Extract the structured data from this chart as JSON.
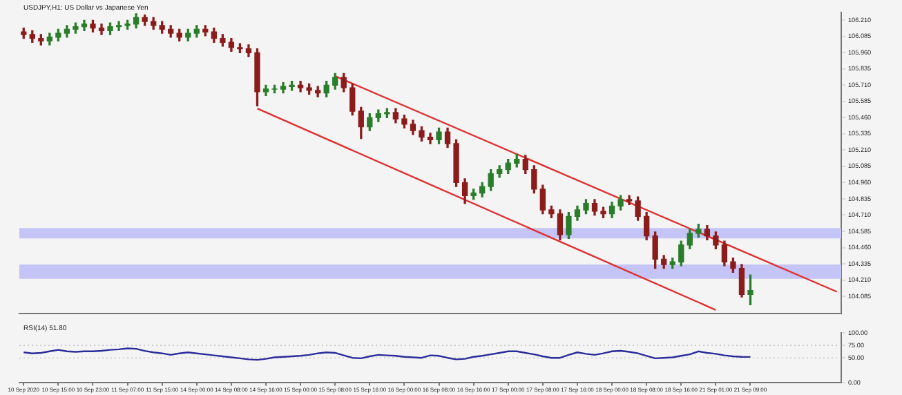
{
  "chart_data": [
    {
      "type": "candlestick",
      "title": "USDJPY,H1: US Dollar vs Japanese Yen",
      "tick_labels": "y",
      "categories": [
        null,
        null,
        null,
        null,
        null,
        null,
        null,
        null,
        null,
        null,
        null,
        null,
        null,
        null,
        null,
        null,
        null,
        null,
        null,
        null,
        null,
        null,
        null,
        null,
        null,
        null,
        null,
        null,
        null,
        null,
        null,
        null,
        null,
        null,
        null,
        null,
        null,
        null,
        null,
        null,
        null,
        null,
        null,
        null,
        null,
        null,
        null,
        null,
        null,
        null,
        null,
        null,
        null,
        null,
        null,
        null,
        null,
        null,
        null,
        null,
        null,
        null,
        null,
        null,
        null,
        null,
        null,
        null,
        null,
        null,
        null,
        null,
        null,
        null,
        null,
        null,
        null,
        null,
        null,
        null,
        null,
        null,
        null,
        null,
        null,
        null,
        null,
        null,
        null,
        null,
        null,
        null,
        null,
        null,
        null
      ],
      "ohlc": [
        [
          106.12,
          106.15,
          106.07,
          106.1
        ],
        [
          106.1,
          106.13,
          106.04,
          106.07
        ],
        [
          106.07,
          106.1,
          106.02,
          106.05
        ],
        [
          106.05,
          106.11,
          106.02,
          106.08
        ],
        [
          106.08,
          106.14,
          106.05,
          106.11
        ],
        [
          106.11,
          106.17,
          106.08,
          106.14
        ],
        [
          106.14,
          106.19,
          106.11,
          106.16
        ],
        [
          106.16,
          106.21,
          106.13,
          106.18
        ],
        [
          106.18,
          106.21,
          106.12,
          106.15
        ],
        [
          106.15,
          106.18,
          106.1,
          106.13
        ],
        [
          106.13,
          106.19,
          106.1,
          106.16
        ],
        [
          106.16,
          106.2,
          106.13,
          106.17
        ],
        [
          106.17,
          106.21,
          106.14,
          106.18
        ],
        [
          106.18,
          106.26,
          106.15,
          106.23
        ],
        [
          106.23,
          106.25,
          106.17,
          106.2
        ],
        [
          106.2,
          106.23,
          106.14,
          106.17
        ],
        [
          106.17,
          106.2,
          106.11,
          106.14
        ],
        [
          106.14,
          106.17,
          106.08,
          106.11
        ],
        [
          106.11,
          106.14,
          106.05,
          106.08
        ],
        [
          106.08,
          106.14,
          106.05,
          106.11
        ],
        [
          106.11,
          106.17,
          106.08,
          106.14
        ],
        [
          106.14,
          106.17,
          106.09,
          106.12
        ],
        [
          106.12,
          106.15,
          106.04,
          106.07
        ],
        [
          106.07,
          106.1,
          106.01,
          106.04
        ],
        [
          106.04,
          106.07,
          105.97,
          106.0
        ],
        [
          106.0,
          106.03,
          105.96,
          105.99
        ],
        [
          105.99,
          106.02,
          105.93,
          105.96
        ],
        [
          105.96,
          105.99,
          105.55,
          105.66
        ],
        [
          105.66,
          105.71,
          105.63,
          105.68
        ],
        [
          105.68,
          105.71,
          105.65,
          105.68
        ],
        [
          105.68,
          105.73,
          105.65,
          105.7
        ],
        [
          105.7,
          105.74,
          105.67,
          105.71
        ],
        [
          105.71,
          105.74,
          105.66,
          105.69
        ],
        [
          105.69,
          105.72,
          105.64,
          105.67
        ],
        [
          105.67,
          105.7,
          105.62,
          105.65
        ],
        [
          105.65,
          105.74,
          105.62,
          105.71
        ],
        [
          105.71,
          105.8,
          105.68,
          105.77
        ],
        [
          105.77,
          105.8,
          105.66,
          105.69
        ],
        [
          105.69,
          105.72,
          105.48,
          105.51
        ],
        [
          105.51,
          105.54,
          105.3,
          105.39
        ],
        [
          105.39,
          105.49,
          105.36,
          105.46
        ],
        [
          105.46,
          105.52,
          105.43,
          105.49
        ],
        [
          105.49,
          105.53,
          105.46,
          105.5
        ],
        [
          105.5,
          105.53,
          105.42,
          105.45
        ],
        [
          105.45,
          105.48,
          105.38,
          105.41
        ],
        [
          105.41,
          105.44,
          105.33,
          105.36
        ],
        [
          105.36,
          105.39,
          105.28,
          105.31
        ],
        [
          105.31,
          105.34,
          105.26,
          105.29
        ],
        [
          105.29,
          105.38,
          105.26,
          105.35
        ],
        [
          105.35,
          105.38,
          105.23,
          105.26
        ],
        [
          105.26,
          105.29,
          104.93,
          104.96
        ],
        [
          104.96,
          104.99,
          104.8,
          104.86
        ],
        [
          104.86,
          104.91,
          104.83,
          104.88
        ],
        [
          104.88,
          104.96,
          104.85,
          104.93
        ],
        [
          104.93,
          105.06,
          104.9,
          105.03
        ],
        [
          105.03,
          105.09,
          105.0,
          105.06
        ],
        [
          105.06,
          105.14,
          105.03,
          105.11
        ],
        [
          105.11,
          105.18,
          105.08,
          105.14
        ],
        [
          105.14,
          105.17,
          105.03,
          105.06
        ],
        [
          105.06,
          105.09,
          104.88,
          104.91
        ],
        [
          104.91,
          104.94,
          104.72,
          104.75
        ],
        [
          104.75,
          104.78,
          104.69,
          104.72
        ],
        [
          104.72,
          104.75,
          104.52,
          104.56
        ],
        [
          104.56,
          104.73,
          104.53,
          104.7
        ],
        [
          104.7,
          104.78,
          104.67,
          104.75
        ],
        [
          104.75,
          104.83,
          104.72,
          104.8
        ],
        [
          104.8,
          104.83,
          104.71,
          104.74
        ],
        [
          104.74,
          104.77,
          104.69,
          104.72
        ],
        [
          104.72,
          104.81,
          104.69,
          104.78
        ],
        [
          104.78,
          104.86,
          104.75,
          104.83
        ],
        [
          104.83,
          104.86,
          104.79,
          104.82
        ],
        [
          104.82,
          104.85,
          104.67,
          104.7
        ],
        [
          104.7,
          104.73,
          104.52,
          104.55
        ],
        [
          104.55,
          104.58,
          104.3,
          104.37
        ],
        [
          104.37,
          104.4,
          104.3,
          104.33
        ],
        [
          104.33,
          104.38,
          104.3,
          104.35
        ],
        [
          104.35,
          104.51,
          104.32,
          104.48
        ],
        [
          104.48,
          104.6,
          104.45,
          104.57
        ],
        [
          104.57,
          104.64,
          104.54,
          104.6
        ],
        [
          104.6,
          104.63,
          104.52,
          104.55
        ],
        [
          104.55,
          104.58,
          104.45,
          104.48
        ],
        [
          104.48,
          104.51,
          104.32,
          104.35
        ],
        [
          104.35,
          104.38,
          104.27,
          104.3
        ],
        [
          104.3,
          104.33,
          104.08,
          104.1
        ],
        [
          104.1,
          104.25,
          104.02,
          104.13
        ],
        null,
        null,
        null,
        null,
        null,
        null,
        null,
        null,
        null,
        null
      ],
      "colors": [
        "#8b1c1c",
        "#8b1c1c",
        "#8b1c1c",
        "#2a7d2a",
        "#2a7d2a",
        "#2a7d2a",
        "#2a7d2a",
        "#2a7d2a",
        "#8b1c1c",
        "#8b1c1c",
        "#2a7d2a",
        "#2a7d2a",
        "#2a7d2a",
        "#2a7d2a",
        "#8b1c1c",
        "#8b1c1c",
        "#8b1c1c",
        "#8b1c1c",
        "#8b1c1c",
        "#2a7d2a",
        "#2a7d2a",
        "#8b1c1c",
        "#8b1c1c",
        "#8b1c1c",
        "#8b1c1c",
        "#8b1c1c",
        "#8b1c1c",
        "#8b1c1c",
        "#2a7d2a",
        "#2a7d2a",
        "#2a7d2a",
        "#2a7d2a",
        "#8b1c1c",
        "#8b1c1c",
        "#8b1c1c",
        "#2a7d2a",
        "#2a7d2a",
        "#8b1c1c",
        "#8b1c1c",
        "#8b1c1c",
        "#2a7d2a",
        "#2a7d2a",
        "#2a7d2a",
        "#8b1c1c",
        "#8b1c1c",
        "#8b1c1c",
        "#8b1c1c",
        "#8b1c1c",
        "#2a7d2a",
        "#8b1c1c",
        "#8b1c1c",
        "#8b1c1c",
        "#2a7d2a",
        "#2a7d2a",
        "#2a7d2a",
        "#2a7d2a",
        "#2a7d2a",
        "#2a7d2a",
        "#8b1c1c",
        "#8b1c1c",
        "#8b1c1c",
        "#8b1c1c",
        "#8b1c1c",
        "#2a7d2a",
        "#2a7d2a",
        "#2a7d2a",
        "#8b1c1c",
        "#8b1c1c",
        "#2a7d2a",
        "#2a7d2a",
        "#8b1c1c",
        "#8b1c1c",
        "#8b1c1c",
        "#8b1c1c",
        "#8b1c1c",
        "#2a7d2a",
        "#2a7d2a",
        "#2a7d2a",
        "#2a7d2a",
        "#8b1c1c",
        "#8b1c1c",
        "#8b1c1c",
        "#8b1c1c",
        "#8b1c1c",
        "#2a7d2a",
        null,
        null,
        null,
        null,
        null,
        null,
        null,
        null,
        null,
        null
      ],
      "series": [
        {
          "type": "line",
          "color": "#e03030",
          "values": [
            null,
            null,
            null,
            null,
            null,
            null,
            null,
            null,
            null,
            null,
            null,
            null,
            null,
            null,
            null,
            null,
            null,
            null,
            null,
            null,
            null,
            null,
            null,
            null,
            null,
            null,
            null,
            null,
            null,
            null,
            null,
            null,
            null,
            null,
            null,
            null,
            105.78,
            null,
            null,
            null,
            null,
            null,
            null,
            null,
            null,
            null,
            null,
            null,
            null,
            null,
            null,
            null,
            null,
            null,
            null,
            null,
            null,
            null,
            null,
            null,
            null,
            null,
            null,
            null,
            null,
            null,
            null,
            null,
            null,
            null,
            null,
            null,
            null,
            null,
            null,
            null,
            null,
            null,
            null,
            null,
            null,
            null,
            null,
            null,
            null,
            null,
            null,
            null,
            null,
            null,
            null,
            null,
            null,
            null,
            104.12
          ]
        },
        {
          "type": "line",
          "color": "#e03030",
          "values": [
            null,
            null,
            null,
            null,
            null,
            null,
            null,
            null,
            null,
            null,
            null,
            null,
            null,
            null,
            null,
            null,
            null,
            null,
            null,
            null,
            null,
            null,
            null,
            null,
            null,
            null,
            null,
            105.53,
            null,
            null,
            null,
            null,
            null,
            null,
            null,
            null,
            null,
            null,
            null,
            null,
            null,
            null,
            null,
            null,
            null,
            null,
            null,
            null,
            null,
            null,
            null,
            null,
            null,
            null,
            null,
            null,
            null,
            null,
            null,
            null,
            null,
            null,
            null,
            null,
            null,
            null,
            null,
            null,
            null,
            null,
            null,
            null,
            null,
            null,
            null,
            null,
            null,
            null,
            null,
            null,
            103.98,
            null,
            null,
            null,
            null,
            null,
            null,
            null,
            null,
            null,
            null,
            null,
            null,
            null,
            null
          ]
        }
      ],
      "bands": [
        {
          "axis": "y",
          "from": 104.53,
          "to": 104.61,
          "color": "#c4c4f6"
        },
        {
          "axis": "y",
          "from": 104.22,
          "to": 104.33,
          "color": "#c4c4f6"
        }
      ],
      "ylim": [
        103.95,
        106.27
      ],
      "yticks": [
        {
          "value": 104.085,
          "label": "104.085"
        },
        {
          "value": 104.21,
          "label": "104.210"
        },
        {
          "value": 104.335,
          "label": "104.335"
        },
        {
          "value": 104.46,
          "label": "104.460"
        },
        {
          "value": 104.585,
          "label": "104.585"
        },
        {
          "value": 104.71,
          "label": "104.710"
        },
        {
          "value": 104.835,
          "label": "104.835"
        },
        {
          "value": 104.96,
          "label": "104.960"
        },
        {
          "value": 105.085,
          "label": "105.085"
        },
        {
          "value": 105.21,
          "label": "105.210"
        },
        {
          "value": 105.335,
          "label": "105.335"
        },
        {
          "value": 105.46,
          "label": "105.460"
        },
        {
          "value": 105.585,
          "label": "105.585"
        },
        {
          "value": 105.71,
          "label": "105.710"
        },
        {
          "value": 105.835,
          "label": "105.835"
        },
        {
          "value": 105.96,
          "label": "105.960"
        },
        {
          "value": 106.085,
          "label": "106.085"
        },
        {
          "value": 106.21,
          "label": "106.210"
        }
      ]
    },
    {
      "type": "line",
      "title": "RSI(14) 51.80",
      "categories": [
        "10 Sep 2020",
        null,
        null,
        null,
        "10 Sep 15:00",
        null,
        null,
        null,
        "10 Sep 23:00",
        null,
        null,
        null,
        "11 Sep 07:00",
        null,
        null,
        null,
        "11 Sep 15:00",
        null,
        null,
        null,
        "14 Sep 00:00",
        null,
        null,
        null,
        "14 Sep 08:00",
        null,
        null,
        null,
        "14 Sep 16:00",
        null,
        null,
        null,
        "15 Sep 00:00",
        null,
        null,
        null,
        "15 Sep 08:00",
        null,
        null,
        null,
        "15 Sep 16:00",
        null,
        null,
        null,
        "16 Sep 00:00",
        null,
        null,
        null,
        "16 Sep 08:00",
        null,
        null,
        null,
        "16 Sep 16:00",
        null,
        null,
        null,
        "17 Sep 00:00",
        null,
        null,
        null,
        "17 Sep 08:00",
        null,
        null,
        null,
        "17 Sep 16:00",
        null,
        null,
        null,
        "18 Sep 00:00",
        null,
        null,
        null,
        "18 Sep 08:00",
        null,
        null,
        null,
        "18 Sep 16:00",
        null,
        null,
        null,
        "21 Sep 01:00",
        null,
        null,
        null,
        "21 Sep 09:00",
        null,
        null,
        null,
        null,
        null,
        null,
        null,
        null,
        null,
        null
      ],
      "series": [
        {
          "color": "#2b2b9a",
          "values": [
            61,
            59,
            60,
            63,
            66,
            63,
            62,
            63,
            63,
            64,
            66,
            67,
            69,
            68,
            64,
            61,
            59,
            56,
            59,
            61,
            59,
            57,
            55,
            53,
            51,
            49,
            47,
            46,
            48,
            51,
            52,
            53,
            54,
            56,
            59,
            61,
            60,
            55,
            50,
            49,
            53,
            56,
            55,
            54,
            52,
            51,
            50,
            55,
            54,
            50,
            47,
            48,
            52,
            54,
            57,
            60,
            63,
            63,
            60,
            57,
            53,
            50,
            50,
            56,
            61,
            58,
            56,
            59,
            63,
            64,
            62,
            59,
            54,
            49,
            50,
            51,
            54,
            57,
            63,
            60,
            58,
            55,
            53,
            52,
            51.8,
            null,
            null,
            null,
            null,
            null,
            null,
            null,
            null,
            null,
            null
          ]
        }
      ],
      "ref_lines": [
        {
          "axis": "y",
          "value": 75,
          "color": "#c8c8c8",
          "line_style": "dotted"
        },
        {
          "axis": "y",
          "value": 50,
          "color": "#c8c8c8",
          "line_style": "dotted"
        }
      ],
      "ylim": [
        0,
        100
      ],
      "yticks": [
        {
          "value": 0,
          "label": "0.00"
        },
        {
          "value": 50,
          "label": "50.00"
        },
        {
          "value": 75,
          "label": "75.00"
        },
        {
          "value": 100,
          "label": "100.00"
        }
      ]
    }
  ]
}
